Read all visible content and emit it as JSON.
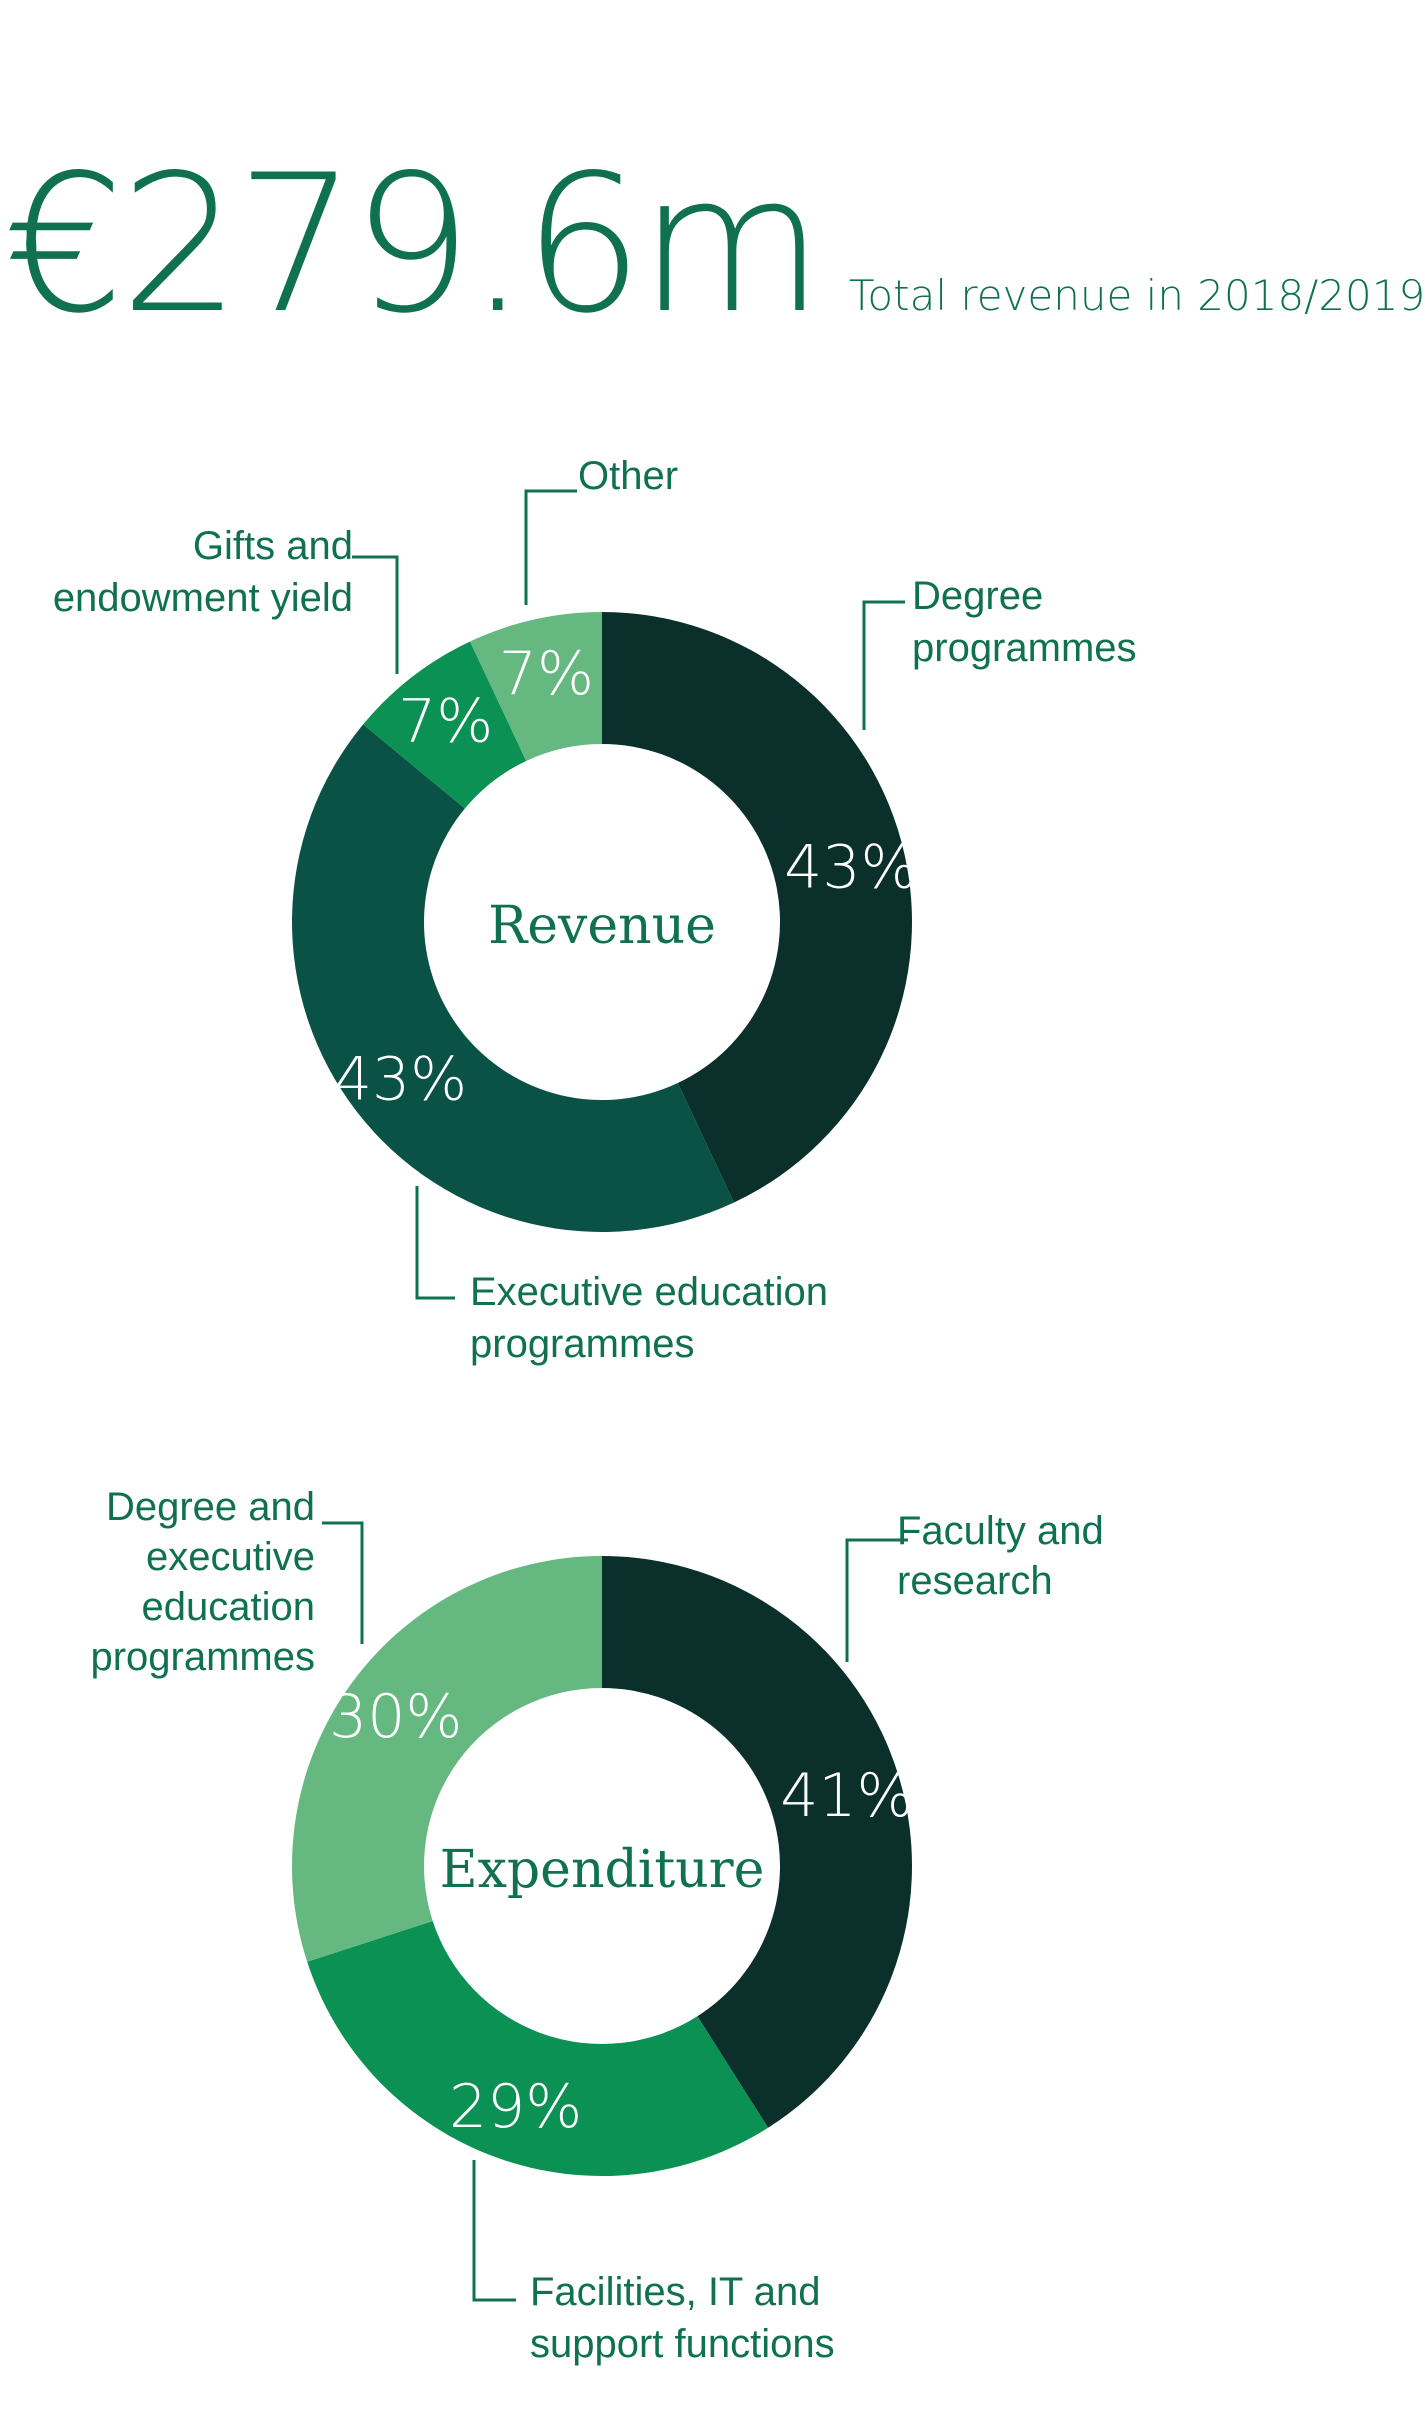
{
  "header": {
    "amount": "€279.6m",
    "subtitle": "Total revenue in 2018/2019"
  },
  "palette": {
    "background": "#ffffff",
    "label_green": "#107150",
    "percent_text": "#ffffff",
    "dark_teal": "#0b302c",
    "deep_green": "#0a5246",
    "green": "#0b9154",
    "light_green": "#65b880"
  },
  "chart_data": [
    {
      "type": "pie",
      "variant": "donut",
      "title": "Revenue",
      "unit": "%",
      "start_angle_deg": 0,
      "direction": "clockwise-from-top",
      "segments": [
        {
          "label": "Degree programmes",
          "callout": "Degree\nprogrammes",
          "value": 43,
          "pct": "43%",
          "color": "#0b302c"
        },
        {
          "label": "Executive education programmes",
          "callout": "Executive education\nprogrammes",
          "value": 43,
          "pct": "43%",
          "color": "#0a5246"
        },
        {
          "label": "Gifts and endowment yield",
          "callout": "Gifts and\nendowment yield",
          "value": 7,
          "pct": "7%",
          "color": "#0b9154"
        },
        {
          "label": "Other",
          "callout": "Other",
          "value": 7,
          "pct": "7%",
          "color": "#65b880"
        }
      ]
    },
    {
      "type": "pie",
      "variant": "donut",
      "title": "Expenditure",
      "unit": "%",
      "start_angle_deg": 0,
      "direction": "clockwise-from-top",
      "segments": [
        {
          "label": "Faculty and research",
          "callout": "Faculty and\nresearch",
          "value": 41,
          "pct": "41%",
          "color": "#0b302c"
        },
        {
          "label": "Facilities, IT and support functions",
          "callout": "Facilities, IT and\nsupport functions",
          "value": 29,
          "pct": "29%",
          "color": "#0b9154"
        },
        {
          "label": "Degree and executive education programmes",
          "callout": "Degree and\nexecutive\neducation\nprogrammes",
          "value": 30,
          "pct": "30%",
          "color": "#65b880"
        }
      ]
    }
  ]
}
